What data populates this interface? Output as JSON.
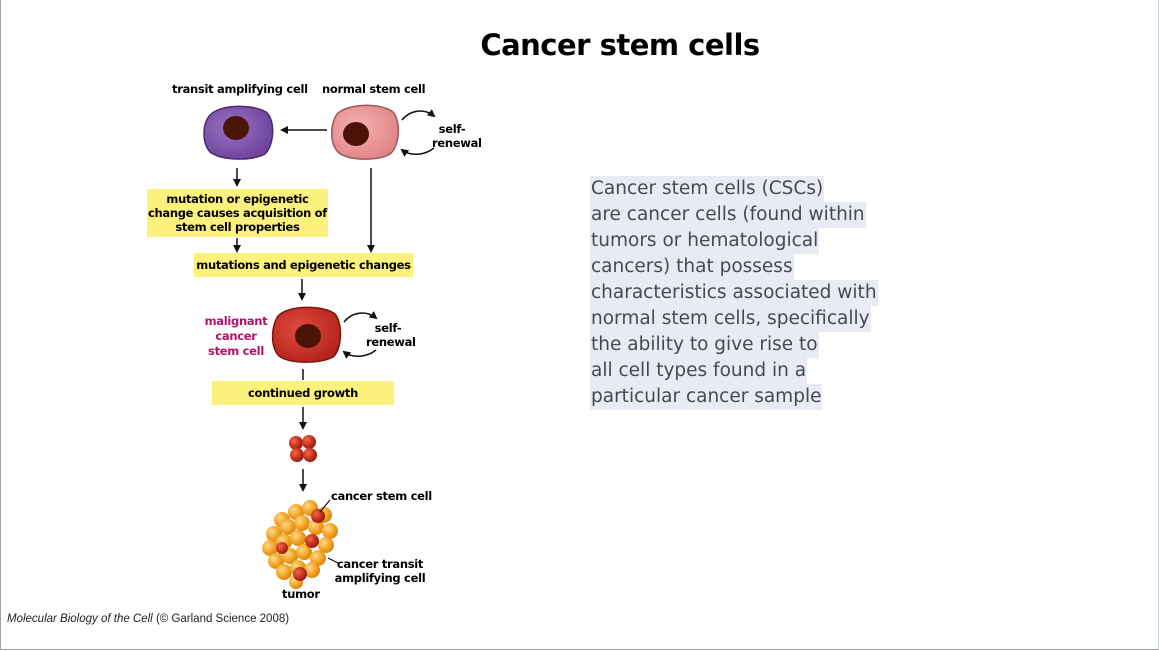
{
  "title": "Cancer stem cells",
  "labels": {
    "transit_amplifying_cell": "transit amplifying cell",
    "normal_stem_cell": "normal stem cell",
    "self_renewal_1a": "self-",
    "self_renewal_1b": "renewal",
    "mutation_box_l1": "mutation or epigenetic",
    "mutation_box_l2": "change causes acquisition of",
    "mutation_box_l3": "stem cell properties",
    "mutations_box": "mutations and epigenetic changes",
    "malignant_l1": "malignant",
    "malignant_l2": "cancer",
    "malignant_l3": "stem cell",
    "self_renewal_2a": "self-",
    "self_renewal_2b": "renewal",
    "continued_growth": "continued growth",
    "cancer_stem_cell": "cancer stem cell",
    "cancer_transit_l1": "cancer transit",
    "cancer_transit_l2": "amplifying cell",
    "tumor": "tumor"
  },
  "description": [
    "Cancer stem cells (CSCs)",
    "are cancer cells (found within",
    "tumors or hematological",
    "cancers) that possess",
    "characteristics associated with",
    "normal stem cells, specifically",
    "the ability to give rise to",
    "all cell types found in a",
    "particular cancer sample"
  ],
  "credit": {
    "book": "Molecular Biology of the Cell",
    "rest": " (© Garland Science 2008)"
  },
  "colors": {
    "transit_cell": "#7a4fa6",
    "normal_cell": "#e89597",
    "malignant_cell": "#c42a22",
    "nucleus": "#4a1408",
    "highlight": "#fbf17c",
    "tumor_orange": "#f2a422",
    "tumor_red": "#c5301e"
  }
}
